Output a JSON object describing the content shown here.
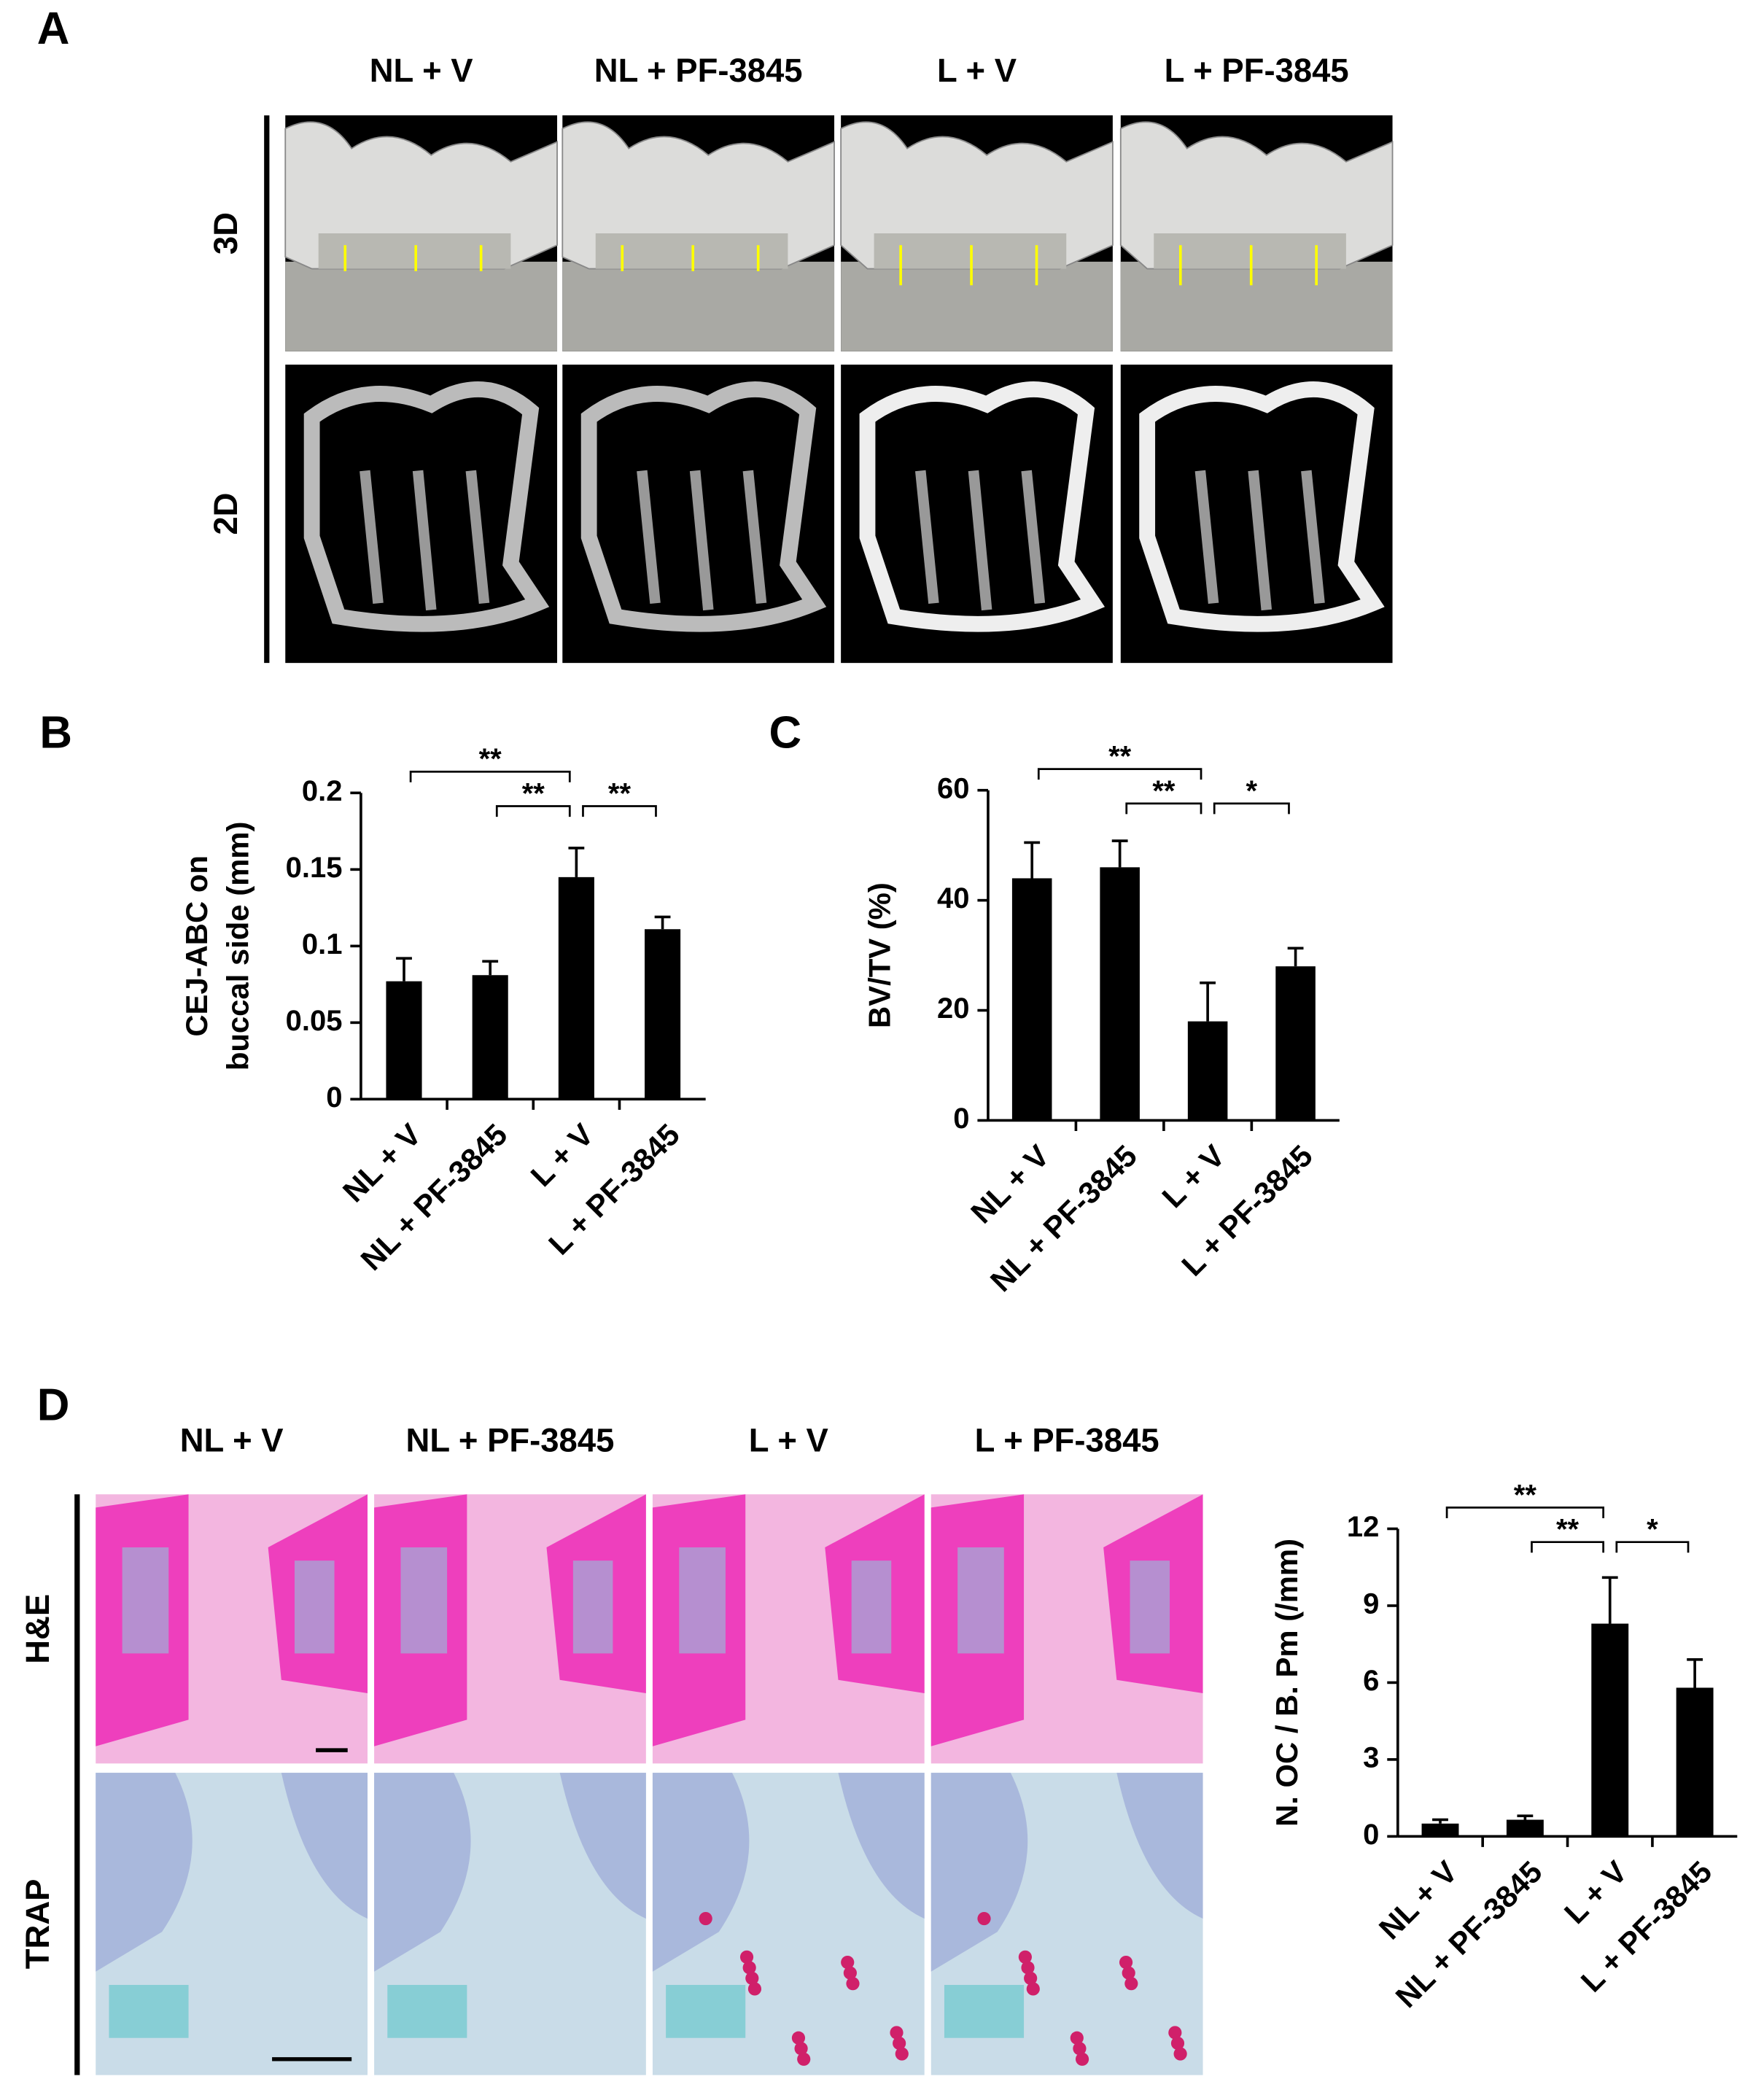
{
  "panel_labels": [
    "A",
    "B",
    "C",
    "D"
  ],
  "image_panels": [
    {
      "columns": [
        "NL + V",
        "NL + PF-3845",
        "L + V",
        "L + PF-3845"
      ],
      "rows": [
        "3D",
        "2D"
      ]
    },
    {
      "columns": [
        "NL + V",
        "NL + PF-3845",
        "L + V",
        "L + PF-3845"
      ],
      "rows": [
        "H&E",
        "TRAP"
      ]
    }
  ],
  "chart_data": [
    {
      "type": "bar",
      "ylabel": [
        "CEJ-ABC on",
        "buccal side (mm)"
      ],
      "categories": [
        "NL + V",
        "NL + PF-3845",
        "L + V",
        "L + PF-3845"
      ],
      "values": [
        0.077,
        0.081,
        0.145,
        0.111
      ],
      "errors": [
        0.015,
        0.009,
        0.019,
        0.008
      ],
      "color": "#000000",
      "ylim": [
        0,
        0.2
      ],
      "yticks": [
        0,
        0.05,
        0.1,
        0.15,
        0.2
      ],
      "significance": [
        {
          "pair": [
            0,
            2
          ],
          "label": "**"
        },
        {
          "pair": [
            1,
            2
          ],
          "label": "**"
        },
        {
          "pair": [
            2,
            3
          ],
          "label": "**"
        }
      ]
    },
    {
      "type": "bar",
      "ylabel": [
        "BV/TV (%)"
      ],
      "categories": [
        "NL + V",
        "NL + PF-3845",
        "L + V",
        "L + PF-3845"
      ],
      "values": [
        44,
        46,
        18,
        28
      ],
      "errors": [
        6.5,
        4.8,
        7,
        3.3
      ],
      "color": "#000000",
      "ylim": [
        0,
        60
      ],
      "yticks": [
        0,
        20,
        40,
        60
      ],
      "significance": [
        {
          "pair": [
            0,
            2
          ],
          "label": "**"
        },
        {
          "pair": [
            1,
            2
          ],
          "label": "**"
        },
        {
          "pair": [
            2,
            3
          ],
          "label": "*"
        }
      ]
    },
    {
      "type": "bar",
      "ylabel": [
        "N. OC / B. Pm (/mm)"
      ],
      "categories": [
        "NL + V",
        "NL + PF-3845",
        "L + V",
        "L + PF-3845"
      ],
      "values": [
        0.5,
        0.65,
        8.3,
        5.8
      ],
      "errors": [
        0.15,
        0.15,
        1.8,
        1.1
      ],
      "color": "#000000",
      "ylim": [
        0,
        12
      ],
      "yticks": [
        0,
        3,
        6,
        9,
        12
      ],
      "significance": [
        {
          "pair": [
            0,
            2
          ],
          "label": "**"
        },
        {
          "pair": [
            1,
            2
          ],
          "label": "**"
        },
        {
          "pair": [
            2,
            3
          ],
          "label": "*"
        }
      ]
    }
  ]
}
